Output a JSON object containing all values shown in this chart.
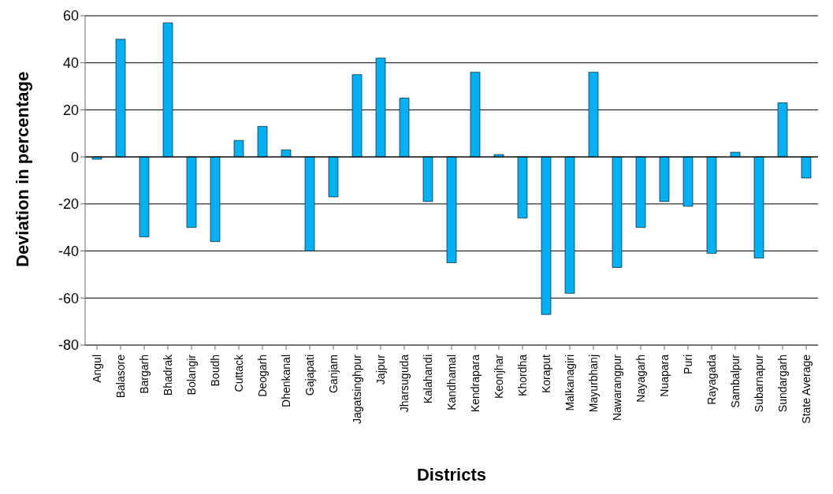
{
  "chart_data": {
    "type": "bar",
    "xlabel": "Districts",
    "ylabel": "Deviation in percentage",
    "categories": [
      "Angul",
      "Balasore",
      "Bargarh",
      "Bhadrak",
      "Bolangir",
      "Boudh",
      "Cuttack",
      "Deogarh",
      "Dhenkanal",
      "Gajapati",
      "Ganjam",
      "Jagatsinghpur",
      "Jajpur",
      "Jharsuguda",
      "Kalahandi",
      "Kandhamal",
      "Kendrapara",
      "Keonjhar",
      "Khordha",
      "Koraput",
      "Malkanagiri",
      "Mayurbhanj",
      "Nawarangpur",
      "Nayagarh",
      "Nuapara",
      "Puri",
      "Rayagada",
      "Sambalpur",
      "Subarnapur",
      "Sundargarh",
      "State Average"
    ],
    "values": [
      -1,
      50,
      -34,
      57,
      -30,
      -36,
      7,
      13,
      3,
      -40,
      -17,
      35,
      42,
      25,
      -19,
      -45,
      36,
      1,
      -26,
      -67,
      -58,
      36,
      -47,
      -30,
      -19,
      -21,
      -41,
      2,
      -43,
      23,
      -9
    ],
    "color": "#00b0f0",
    "ylim": [
      -80,
      60
    ],
    "yticks": [
      -80,
      -60,
      -40,
      -20,
      0,
      20,
      40,
      60
    ],
    "grid": "y"
  }
}
